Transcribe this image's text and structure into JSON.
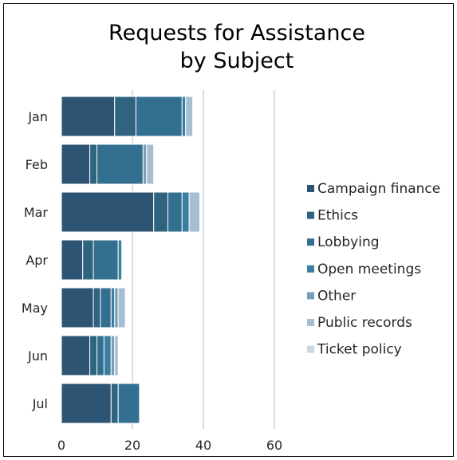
{
  "chart_data": {
    "type": "bar",
    "orientation": "horizontal",
    "stacked": true,
    "title_lines": [
      "Requests for Assistance",
      "by Subject"
    ],
    "categories": [
      "Jan",
      "Feb",
      "Mar",
      "Apr",
      "May",
      "Jun",
      "Jul"
    ],
    "series": [
      {
        "name": "Campaign finance",
        "color": "#2d5573",
        "values": [
          15,
          8,
          26,
          6,
          9,
          8,
          14
        ]
      },
      {
        "name": "Ethics",
        "color": "#30637f",
        "values": [
          6,
          2,
          4,
          3,
          2,
          2,
          2
        ]
      },
      {
        "name": "Lobbying",
        "color": "#336f8f",
        "values": [
          13,
          13,
          4,
          7,
          3,
          2,
          6
        ]
      },
      {
        "name": "Open meetings",
        "color": "#3a7ea0",
        "values": [
          1,
          0,
          2,
          1,
          1,
          2,
          0
        ]
      },
      {
        "name": "Other",
        "color": "#7a9db8",
        "values": [
          0,
          1,
          0,
          0,
          1,
          1,
          0
        ]
      },
      {
        "name": "Public records",
        "color": "#a6bed2",
        "values": [
          2,
          2,
          3,
          0,
          2,
          1,
          0
        ]
      },
      {
        "name": "Ticket policy",
        "color": "#c9d8e4",
        "values": [
          0,
          0,
          0,
          0,
          0,
          0,
          0
        ]
      }
    ],
    "x_ticks": [
      0,
      20,
      40,
      60
    ],
    "xlim": [
      0,
      60
    ],
    "grid": true,
    "legend_position": "right"
  }
}
